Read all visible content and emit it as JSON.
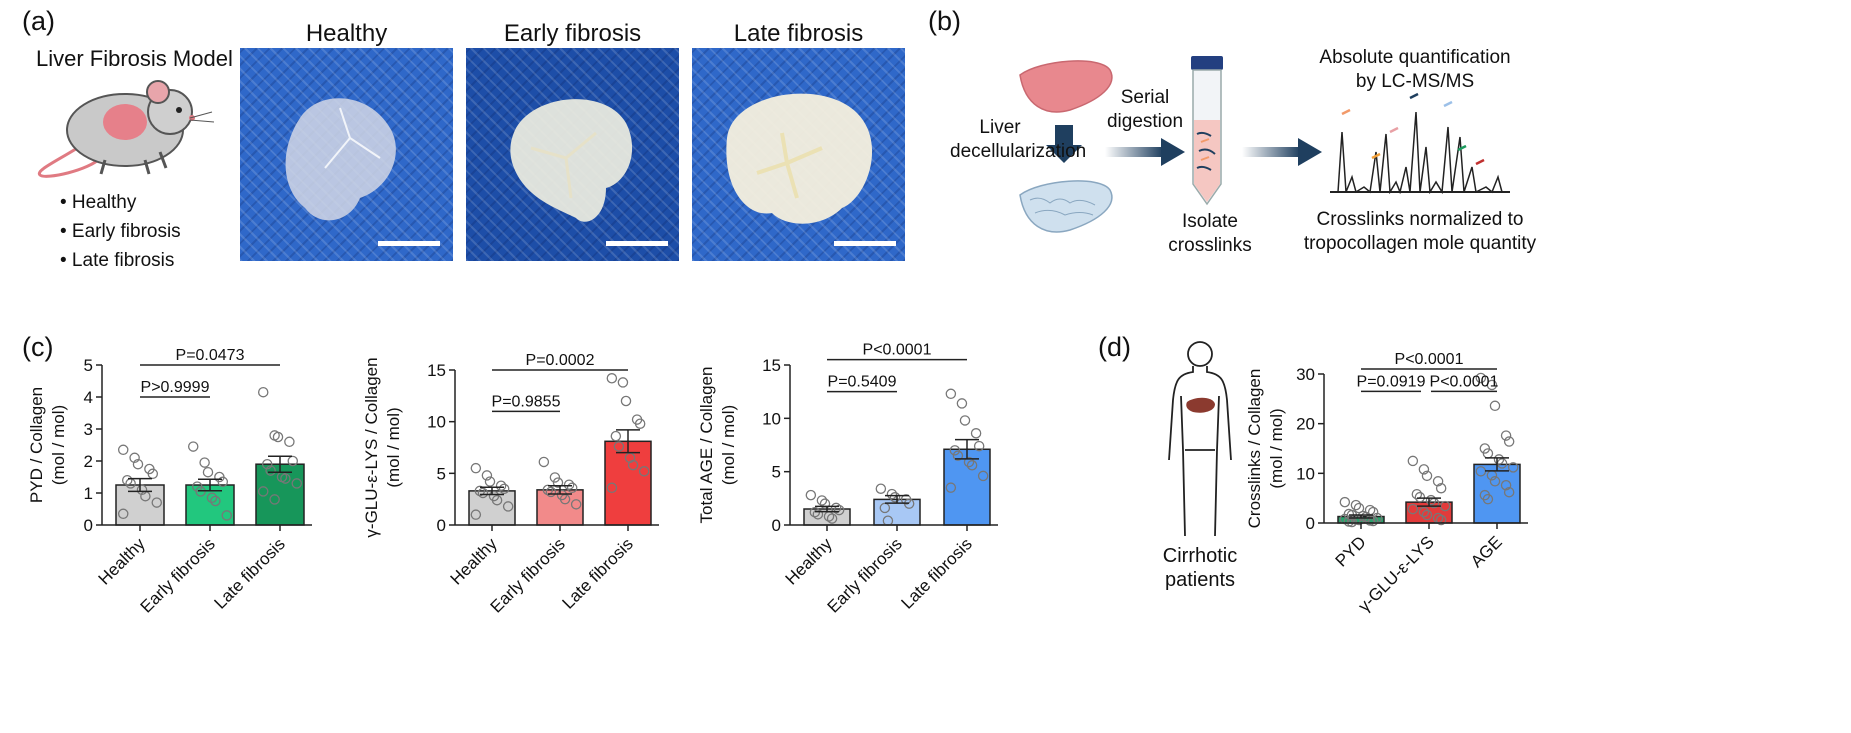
{
  "panel_a": {
    "label": "(a)",
    "model_title": "Liver Fibrosis Model",
    "bullets": [
      "• Healthy",
      "• Early fibrosis",
      "• Late fibrosis"
    ],
    "photo_titles": [
      "Healthy",
      "Early fibrosis",
      "Late fibrosis"
    ]
  },
  "panel_b": {
    "label": "(b)",
    "decell": [
      "Liver",
      "decellularization"
    ],
    "serial": [
      "Serial",
      "digestion"
    ],
    "isolate": [
      "Isolate",
      "crosslinks"
    ],
    "quant": [
      "Absolute quantification",
      "by LC-MS/MS"
    ],
    "norm": [
      "Crosslinks normalized to",
      "tropocollagen mole quantity"
    ]
  },
  "panel_c": {
    "label": "(c)"
  },
  "panel_d": {
    "label": "(d)",
    "patients": [
      "Cirrhotic",
      "patients"
    ]
  },
  "colors": {
    "healthy": "#d0d0d0",
    "pyd_early": "#22c77e",
    "pyd_late": "#17965a",
    "glu_early": "#f28a8a",
    "glu_late": "#ef3e3e",
    "age_early": "#a8c8f5",
    "age_late": "#4f96f2",
    "d_pyd": "#2aa36c",
    "d_glu": "#e23b3b",
    "d_age": "#4f96f2"
  },
  "chart_data": [
    {
      "type": "bar",
      "categories": [
        "Healthy",
        "Early fibrosis",
        "Late fibrosis"
      ],
      "values": [
        1.25,
        1.25,
        1.9
      ],
      "sem": [
        0.2,
        0.18,
        0.25
      ],
      "points": [
        [
          2.35,
          2.1,
          1.9,
          1.75,
          1.6,
          1.4,
          1.3,
          1.1,
          0.9,
          0.7,
          0.35
        ],
        [
          2.45,
          1.95,
          1.65,
          1.5,
          1.35,
          1.2,
          1.05,
          0.85,
          0.75,
          0.3
        ],
        [
          4.15,
          2.8,
          2.75,
          2.6,
          2.0,
          1.9,
          1.7,
          1.5,
          1.45,
          1.3,
          1.05,
          0.8
        ]
      ],
      "ylabel": [
        "PYD / Collagen",
        "(mol / mol)"
      ],
      "ylim": [
        0,
        5
      ],
      "yticks": [
        0,
        1,
        2,
        3,
        4,
        5
      ],
      "comparisons": [
        {
          "from": 0,
          "to": 1,
          "label": "P>0.9999",
          "y": 4.0
        },
        {
          "from": 0,
          "to": 2,
          "label": "P=0.0473",
          "y": 5.0
        }
      ]
    },
    {
      "type": "bar",
      "categories": [
        "Healthy",
        "Early fibrosis",
        "Late fibrosis"
      ],
      "values": [
        3.3,
        3.4,
        8.1
      ],
      "sem": [
        0.35,
        0.4,
        1.1
      ],
      "points": [
        [
          5.5,
          4.8,
          4.2,
          3.8,
          3.5,
          3.3,
          3.1,
          2.8,
          2.4,
          1.8,
          1.0
        ],
        [
          6.1,
          4.6,
          4.1,
          3.9,
          3.6,
          3.4,
          3.2,
          2.9,
          2.5,
          2.0
        ],
        [
          14.2,
          13.8,
          12.0,
          10.2,
          9.8,
          8.6,
          7.6,
          6.5,
          5.8,
          5.2,
          3.6
        ]
      ],
      "ylabel": [
        "γ-GLU-ε-LYS / Collagen",
        "(mol / mol)"
      ],
      "ylim": [
        0,
        15
      ],
      "yticks": [
        0,
        5,
        10,
        15
      ],
      "comparisons": [
        {
          "from": 0,
          "to": 1,
          "label": "P=0.9855",
          "y": 11.0
        },
        {
          "from": 0,
          "to": 2,
          "label": "P=0.0002",
          "y": 15.0
        }
      ]
    },
    {
      "type": "bar",
      "categories": [
        "Healthy",
        "Early fibrosis",
        "Late fibrosis"
      ],
      "values": [
        1.5,
        2.4,
        7.1
      ],
      "sem": [
        0.25,
        0.35,
        0.9
      ],
      "points": [
        [
          2.8,
          2.3,
          2.0,
          1.6,
          1.4,
          1.2,
          1.0,
          0.8,
          0.6
        ],
        [
          3.4,
          2.9,
          2.6,
          2.4,
          2.0,
          1.6,
          0.4
        ],
        [
          12.3,
          11.4,
          9.8,
          8.6,
          7.4,
          7.0,
          6.5,
          5.9,
          5.6,
          4.6,
          3.5
        ]
      ],
      "ylabel": [
        "Total AGE / Collagen",
        "(mol / mol)"
      ],
      "ylim": [
        0,
        15
      ],
      "yticks": [
        0,
        5,
        10,
        15
      ],
      "comparisons": [
        {
          "from": 0,
          "to": 1,
          "label": "P=0.5409",
          "y": 12.5
        },
        {
          "from": 0,
          "to": 2,
          "label": "P<0.0001",
          "y": 15.5
        }
      ]
    },
    {
      "type": "bar",
      "categories": [
        "PYD",
        "γ-GLU-ε-LYS",
        "AGE"
      ],
      "values": [
        1.3,
        4.2,
        11.8
      ],
      "sem": [
        0.3,
        0.8,
        1.3
      ],
      "points": [
        [
          4.2,
          3.6,
          3.0,
          2.6,
          2.2,
          1.8,
          1.6,
          1.4,
          1.2,
          1.0,
          0.8,
          0.7,
          0.6,
          0.5,
          0.4,
          0.3,
          0.2
        ],
        [
          12.5,
          10.8,
          9.5,
          8.4,
          7.0,
          5.8,
          5.2,
          4.6,
          4.0,
          3.4,
          2.8,
          2.2,
          1.6,
          1.0,
          0.6
        ],
        [
          29.2,
          27.8,
          23.6,
          17.6,
          16.4,
          15.0,
          14.0,
          12.8,
          12.0,
          11.2,
          10.4,
          9.6,
          8.4,
          7.6,
          6.2,
          5.6,
          4.8
        ]
      ],
      "ylabel": [
        "Crosslinks / Collagen",
        "(mol / mol)"
      ],
      "ylim": [
        0,
        30
      ],
      "yticks": [
        0,
        10,
        20,
        30
      ],
      "comparisons": [
        {
          "from": 0,
          "to": 1,
          "label": "P=0.0919",
          "y": 26.5
        },
        {
          "from": 1,
          "to": 2,
          "label": "P<0.0001",
          "y": 26.5
        },
        {
          "from": 0,
          "to": 2,
          "label": "P<0.0001",
          "y": 31.0
        }
      ]
    }
  ]
}
